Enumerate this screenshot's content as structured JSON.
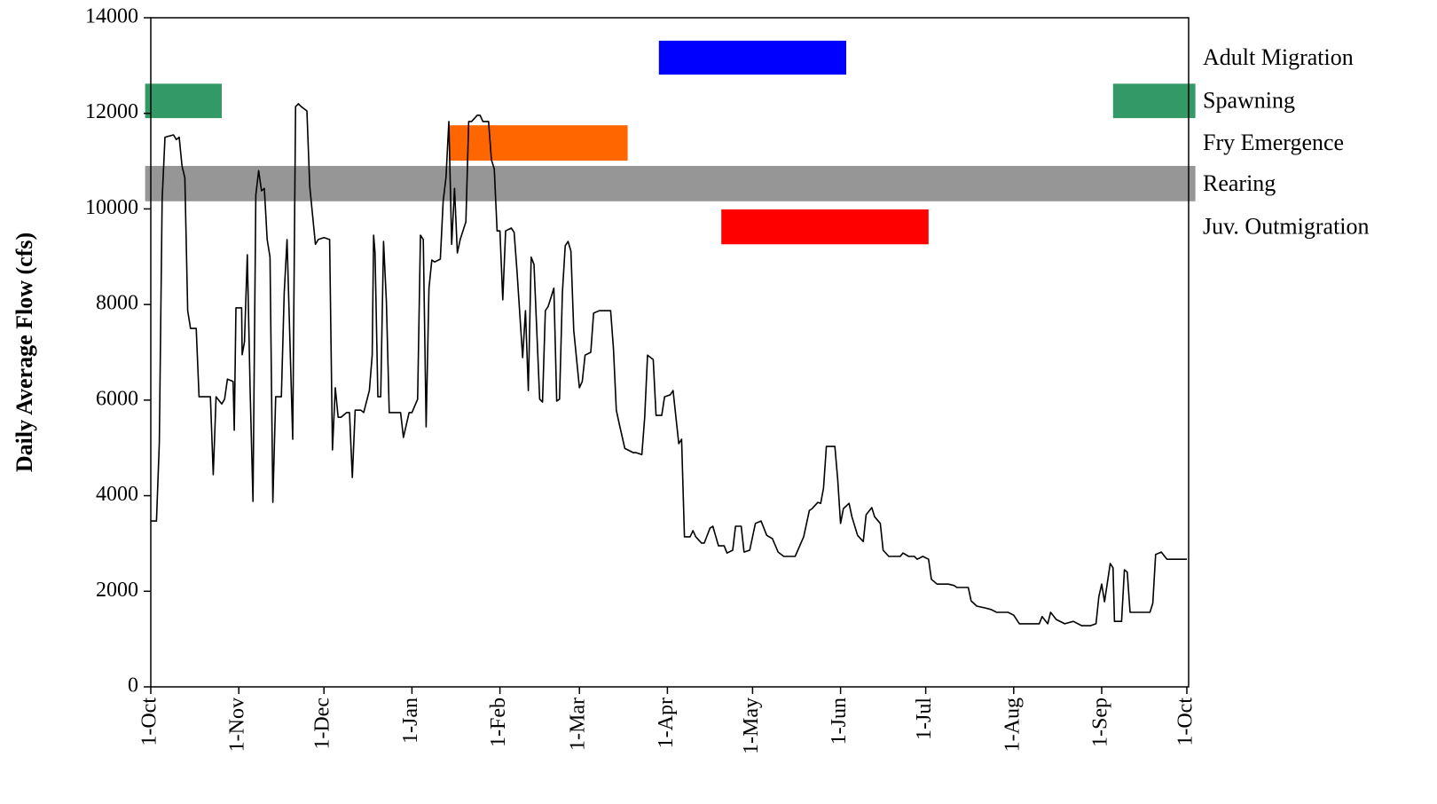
{
  "chart_data": {
    "type": "line",
    "ylabel": "Daily Average Flow (cfs)",
    "xlim": [
      0,
      365
    ],
    "xticks": [
      {
        "value": 0,
        "label": "1-Oct"
      },
      {
        "value": 31,
        "label": "1-Nov"
      },
      {
        "value": 61,
        "label": "1-Dec"
      },
      {
        "value": 92,
        "label": "1-Jan"
      },
      {
        "value": 123,
        "label": "1-Feb"
      },
      {
        "value": 151,
        "label": "1-Mar"
      },
      {
        "value": 182,
        "label": "1-Apr"
      },
      {
        "value": 212,
        "label": "1-May"
      },
      {
        "value": 243,
        "label": "1-Jun"
      },
      {
        "value": 273,
        "label": "1-Jul"
      },
      {
        "value": 304,
        "label": "1-Aug"
      },
      {
        "value": 335,
        "label": "1-Sep"
      },
      {
        "value": 365,
        "label": "1-Oct"
      }
    ],
    "ylim": [
      0,
      14000
    ],
    "yticks": [
      0,
      2000,
      4000,
      6000,
      8000,
      10000,
      12000,
      14000
    ],
    "series": [
      {
        "color": "#000000",
        "x": [
          0,
          2,
          3,
          4,
          5,
          8,
          9,
          10,
          11,
          12,
          13,
          14,
          16,
          17,
          20,
          21,
          22,
          23,
          25,
          26,
          27,
          29,
          29.4,
          30,
          32,
          32.2,
          33,
          34,
          35,
          36,
          37,
          38,
          39,
          40,
          41,
          42,
          43,
          44,
          46,
          47,
          48,
          50,
          51,
          52,
          53,
          55,
          56,
          58,
          59,
          61,
          63,
          64,
          65,
          66,
          67,
          69,
          70,
          71,
          72,
          74,
          75,
          77,
          78,
          78.5,
          79,
          80,
          81,
          82,
          83,
          84,
          86,
          88,
          89,
          91,
          92,
          94,
          95,
          96,
          97,
          98,
          99,
          100,
          102,
          103,
          104,
          105,
          106,
          107,
          108,
          109,
          111,
          112,
          113,
          115,
          116,
          117,
          119,
          120,
          121,
          122,
          123,
          124,
          125,
          127,
          128,
          129,
          131,
          132,
          133,
          134,
          135,
          137,
          138,
          139,
          140,
          142,
          143,
          144,
          145,
          146,
          147,
          148,
          149,
          151,
          152,
          153,
          155,
          156,
          158,
          159,
          162,
          163,
          164,
          165,
          167,
          168,
          170,
          171,
          173,
          174,
          175,
          177,
          178,
          180,
          181,
          183,
          184,
          186,
          187,
          188,
          190,
          191,
          192,
          194,
          195,
          197,
          198,
          200,
          202,
          203,
          205,
          206,
          208,
          209,
          211,
          213,
          215,
          217,
          219,
          221,
          223,
          224,
          227,
          230,
          232,
          233,
          235,
          236,
          237,
          238,
          240,
          241,
          242,
          243,
          244,
          246,
          247,
          249,
          251,
          252,
          254,
          255,
          257,
          258,
          260,
          262,
          264,
          265,
          267,
          269,
          270,
          272,
          274,
          275,
          277,
          279,
          281,
          283,
          284,
          288,
          289,
          291,
          294,
          296,
          298,
          302,
          304,
          306,
          311,
          313,
          314,
          316,
          317,
          319,
          322,
          325,
          328,
          331,
          333,
          334,
          335,
          336,
          338,
          339,
          339.5,
          342,
          343,
          344,
          345,
          348,
          350,
          352,
          353,
          354,
          356,
          358,
          361,
          364,
          365
        ],
        "values": [
          3470,
          3470,
          5100,
          10200,
          11500,
          11550,
          11450,
          11500,
          10900,
          10650,
          7870,
          7500,
          7500,
          6070,
          6070,
          6070,
          4440,
          6070,
          5920,
          6020,
          6440,
          6390,
          5370,
          7930,
          7930,
          6950,
          7220,
          9040,
          6200,
          3880,
          10290,
          10800,
          10380,
          10430,
          9360,
          8990,
          3860,
          6070,
          6070,
          8240,
          9360,
          5180,
          12140,
          12200,
          12140,
          12050,
          10470,
          9260,
          9360,
          9400,
          9360,
          4960,
          6260,
          5640,
          5640,
          5740,
          5740,
          4380,
          5790,
          5790,
          5740,
          6200,
          6940,
          9450,
          9080,
          6070,
          6070,
          9320,
          8060,
          5740,
          5740,
          5740,
          5220,
          5740,
          5740,
          6020,
          9450,
          9360,
          5440,
          8340,
          8930,
          8890,
          8950,
          10160,
          10660,
          11830,
          9260,
          10430,
          9080,
          9360,
          9730,
          11830,
          11830,
          11960,
          11960,
          11830,
          11830,
          11030,
          10840,
          9540,
          9540,
          8100,
          9540,
          9600,
          9510,
          8710,
          6890,
          7870,
          6200,
          8990,
          8840,
          6020,
          5960,
          7870,
          7960,
          8340,
          5980,
          6020,
          8240,
          9230,
          9320,
          9120,
          7460,
          6260,
          6390,
          6940,
          7000,
          7820,
          7870,
          7870,
          7870,
          7070,
          5790,
          5510,
          4990,
          4960,
          4900,
          4900,
          4860,
          5640,
          6940,
          6850,
          5680,
          5680,
          6070,
          6110,
          6200,
          5090,
          5180,
          3140,
          3140,
          3270,
          3140,
          3010,
          3010,
          3320,
          3360,
          2950,
          2950,
          2800,
          2860,
          3360,
          3360,
          2820,
          2860,
          3420,
          3470,
          3170,
          3100,
          2820,
          2730,
          2730,
          2730,
          3140,
          3690,
          3730,
          3860,
          3840,
          4160,
          5030,
          5030,
          5030,
          4340,
          3420,
          3730,
          3840,
          3560,
          3170,
          3040,
          3600,
          3750,
          3560,
          3420,
          2860,
          2730,
          2730,
          2730,
          2800,
          2730,
          2730,
          2670,
          2730,
          2670,
          2250,
          2150,
          2150,
          2150,
          2120,
          2080,
          2080,
          1800,
          1690,
          1650,
          1620,
          1560,
          1560,
          1500,
          1320,
          1320,
          1320,
          1470,
          1320,
          1560,
          1410,
          1320,
          1370,
          1280,
          1280,
          1320,
          1890,
          2150,
          1780,
          2580,
          2490,
          1370,
          1370,
          2450,
          2400,
          1560,
          1560,
          1560,
          1560,
          1750,
          2770,
          2820,
          2670,
          2670,
          2670,
          2670
        ]
      }
    ],
    "periods": [
      {
        "name": "Adult Migration",
        "color": "#0000ff",
        "start": 179,
        "end": 245,
        "ylow": 12810,
        "yhigh": 13520
      },
      {
        "name": "Spawning",
        "color": "#339966",
        "start": -2,
        "end": 25,
        "ylow": 11900,
        "yhigh": 12620
      },
      {
        "name": "Spawning",
        "color": "#339966",
        "start": 339,
        "end": 368,
        "ylow": 11900,
        "yhigh": 12620
      },
      {
        "name": "Fry Emergence",
        "color": "#ff6600",
        "start": 105,
        "end": 168,
        "ylow": 11010,
        "yhigh": 11750
      },
      {
        "name": "Rearing",
        "color": "#969696",
        "start": -2,
        "end": 368,
        "ylow": 10160,
        "yhigh": 10900
      },
      {
        "name": "Juv. Outmigration",
        "color": "#ff0000",
        "start": 201,
        "end": 274,
        "ylow": 9260,
        "yhigh": 9990
      }
    ]
  }
}
